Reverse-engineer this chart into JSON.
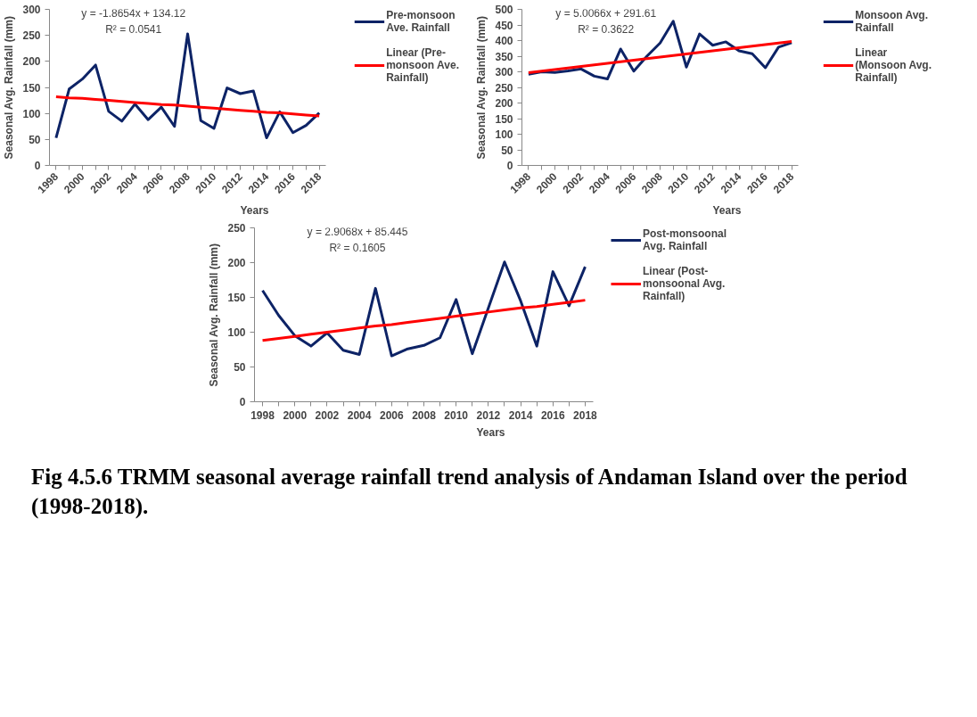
{
  "chart_data": [
    {
      "type": "line",
      "xlabel": "Years",
      "ylabel": "Seasonal Avg. Rainfall (mm)",
      "categories": [
        "1998",
        null,
        "2000",
        null,
        "2002",
        null,
        "2004",
        null,
        "2006",
        null,
        "2008",
        null,
        "2010",
        null,
        "2012",
        null,
        "2014",
        null,
        "2016",
        null,
        "2018"
      ],
      "series": [
        {
          "name": "Pre-monsoon Ave. Rainfall",
          "color": "#0d2366",
          "values": [
            53,
            147,
            166,
            193,
            104,
            85,
            118,
            88,
            112,
            75,
            253,
            86,
            71,
            149,
            138,
            143,
            53,
            103,
            63,
            77,
            101
          ]
        },
        {
          "name": "Linear (Pre-monsoon Ave. Rainfall)",
          "color": "#ff0000",
          "values": [
            132,
            130,
            129,
            127,
            125,
            123,
            121,
            119,
            117,
            116,
            114,
            112,
            110,
            108,
            106,
            104,
            102,
            101,
            99,
            97,
            95
          ]
        }
      ],
      "ylim": [
        0,
        300
      ],
      "yticks": [
        0,
        50,
        100,
        150,
        200,
        250,
        300
      ],
      "grid": false,
      "legend": "right",
      "marker": "none",
      "line_style": "solid",
      "annotations": [
        "y = -1.8654x + 134.12",
        "R² = 0.0541"
      ]
    },
    {
      "type": "line",
      "xlabel": "Years",
      "ylabel": "Seasonal Avg. Rainfall (mm)",
      "categories": [
        "1998",
        null,
        "2000",
        null,
        "2002",
        null,
        "2004",
        null,
        "2006",
        null,
        "2008",
        null,
        "2010",
        null,
        "2012",
        null,
        "2014",
        null,
        "2016",
        null,
        "2018"
      ],
      "series": [
        {
          "name": "Monsoon Avg. Rainfall",
          "color": "#0d2366",
          "values": [
            292,
            300,
            298,
            303,
            309,
            286,
            277,
            373,
            302,
            350,
            392,
            462,
            315,
            421,
            385,
            396,
            367,
            358,
            313,
            379,
            393
          ]
        },
        {
          "name": "Linear (Monsoon Avg. Rainfall)",
          "color": "#ff0000",
          "values": [
            297,
            302,
            307,
            312,
            317,
            322,
            327,
            332,
            337,
            342,
            347,
            352,
            357,
            362,
            367,
            372,
            377,
            382,
            387,
            392,
            397
          ]
        }
      ],
      "ylim": [
        0,
        500
      ],
      "yticks": [
        0,
        50,
        100,
        150,
        200,
        250,
        300,
        350,
        400,
        450,
        500
      ],
      "grid": false,
      "legend": "right",
      "marker": "none",
      "line_style": "solid",
      "annotations": [
        "y = 5.0066x + 291.61",
        "R² = 0.3622"
      ]
    },
    {
      "type": "line",
      "xlabel": "Years",
      "ylabel": "Seasonal Avg. Rainfall (mm)",
      "categories": [
        "1998",
        null,
        "2000",
        null,
        "2002",
        null,
        "2004",
        null,
        "2006",
        null,
        "2008",
        null,
        "2010",
        null,
        "2012",
        null,
        "2014",
        null,
        "2016",
        null,
        "2018"
      ],
      "series": [
        {
          "name": "Post-monsoonal Avg. Rainfall",
          "color": "#0d2366",
          "values": [
            160,
            124,
            95,
            80,
            99,
            74,
            68,
            163,
            66,
            76,
            81,
            92,
            147,
            69,
            135,
            201,
            145,
            80,
            187,
            138,
            194
          ]
        },
        {
          "name": "Linear (Post-monsoonal Avg. Rainfall)",
          "color": "#ff0000",
          "values": [
            88,
            91,
            94,
            97,
            100,
            103,
            106,
            109,
            111,
            114,
            117,
            120,
            123,
            126,
            129,
            132,
            135,
            137,
            140,
            143,
            146
          ]
        }
      ],
      "ylim": [
        0,
        250
      ],
      "yticks": [
        0,
        50,
        100,
        150,
        200,
        250
      ],
      "grid": false,
      "legend": "right",
      "marker": "none",
      "line_style": "solid",
      "annotations": [
        "y = 2.9068x + 85.445",
        "R² = 0.1605",
        "Fig 4.5.6 TRMM seasonal average rainfall trend analysis of Andaman Island over the period (1998-2018)."
      ]
    }
  ]
}
